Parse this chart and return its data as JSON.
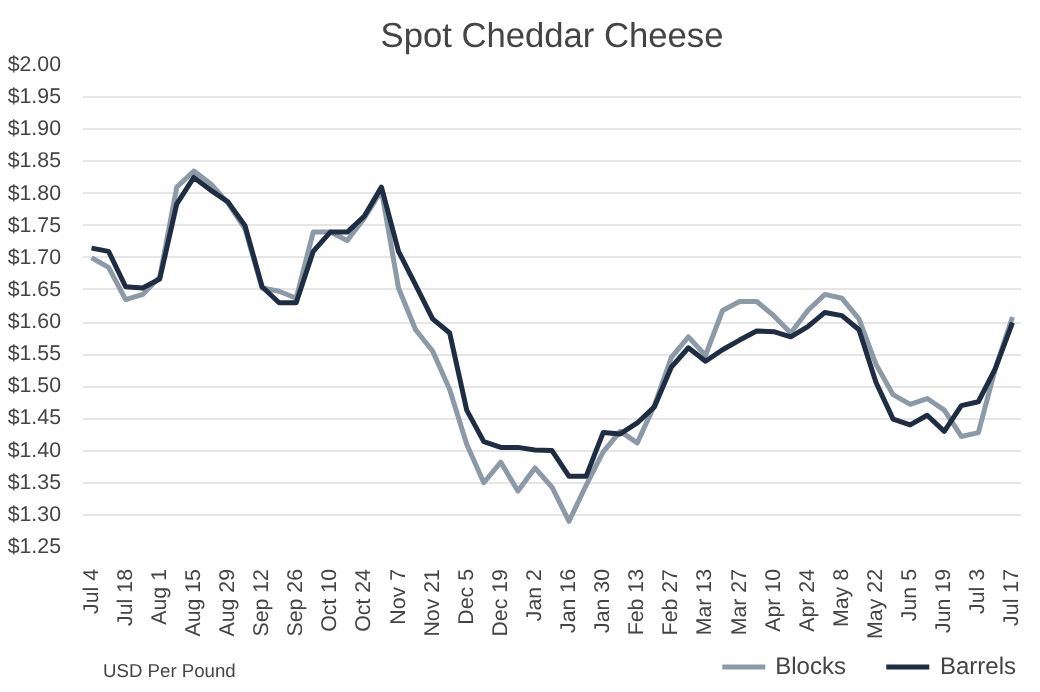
{
  "chart_data": {
    "type": "line",
    "title": "Spot Cheddar Cheese",
    "annotations": [
      "USD Per Pound"
    ],
    "categories": [
      "Jul 4",
      null,
      "Jul 18",
      null,
      "Aug 1",
      null,
      "Aug 15",
      null,
      "Aug 29",
      null,
      "Sep 12",
      null,
      "Sep 26",
      null,
      "Oct 10",
      null,
      "Oct 24",
      null,
      "Nov 7",
      null,
      "Nov 21",
      null,
      "Dec 5",
      null,
      "Dec 19",
      null,
      "Jan 2",
      null,
      "Jan 16",
      null,
      "Jan 30",
      null,
      "Feb 13",
      null,
      "Feb 27",
      null,
      "Mar 13",
      null,
      "Mar 27",
      null,
      "Apr 10",
      null,
      "Apr 24",
      null,
      "May 8",
      null,
      "May 22",
      null,
      "Jun 5",
      null,
      "Jun 19",
      null,
      "Jul 3",
      null,
      "Jul 17"
    ],
    "series": [
      {
        "name": "Blocks",
        "color": "#8c99a6",
        "values": [
          1.7,
          1.685,
          1.635,
          1.643,
          1.67,
          1.81,
          1.835,
          1.815,
          1.785,
          1.745,
          1.653,
          1.648,
          1.637,
          1.74,
          1.74,
          1.727,
          1.762,
          1.805,
          1.653,
          1.588,
          1.555,
          1.495,
          1.41,
          1.35,
          1.382,
          1.337,
          1.373,
          1.343,
          1.29,
          1.346,
          1.398,
          1.43,
          1.412,
          1.47,
          1.545,
          1.577,
          1.548,
          1.618,
          1.632,
          1.632,
          1.61,
          1.583,
          1.618,
          1.643,
          1.637,
          1.605,
          1.534,
          1.487,
          1.472,
          1.481,
          1.463,
          1.422,
          1.428,
          1.528,
          1.608
        ]
      },
      {
        "name": "Barrels",
        "color": "#1f2d42",
        "values": [
          1.715,
          1.71,
          1.655,
          1.653,
          1.667,
          1.784,
          1.825,
          1.805,
          1.787,
          1.75,
          1.655,
          1.63,
          1.63,
          1.71,
          1.74,
          1.74,
          1.765,
          1.81,
          1.71,
          1.658,
          1.605,
          1.583,
          1.463,
          1.414,
          1.405,
          1.405,
          1.401,
          1.4,
          1.36,
          1.36,
          1.428,
          1.426,
          1.443,
          1.468,
          1.53,
          1.56,
          1.539,
          1.557,
          1.572,
          1.586,
          1.585,
          1.577,
          1.593,
          1.615,
          1.61,
          1.588,
          1.506,
          1.449,
          1.44,
          1.455,
          1.43,
          1.47,
          1.476,
          1.528,
          1.599
        ]
      }
    ],
    "ylim": [
      1.25,
      2.0
    ],
    "yticks": [
      {
        "value": 1.25,
        "label": "$1.25"
      },
      {
        "value": 1.3,
        "label": "$1.30"
      },
      {
        "value": 1.35,
        "label": "$1.35"
      },
      {
        "value": 1.4,
        "label": "$1.40"
      },
      {
        "value": 1.45,
        "label": "$1.45"
      },
      {
        "value": 1.5,
        "label": "$1.50"
      },
      {
        "value": 1.55,
        "label": "$1.55"
      },
      {
        "value": 1.6,
        "label": "$1.60"
      },
      {
        "value": 1.65,
        "label": "$1.65"
      },
      {
        "value": 1.7,
        "label": "$1.70"
      },
      {
        "value": 1.75,
        "label": "$1.75"
      },
      {
        "value": 1.8,
        "label": "$1.80"
      },
      {
        "value": 1.85,
        "label": "$1.85"
      },
      {
        "value": 1.9,
        "label": "$1.90"
      },
      {
        "value": 1.95,
        "label": "$1.95"
      },
      {
        "value": 2.0,
        "label": "$2.00"
      }
    ],
    "grid": "y",
    "legend": "bottom right",
    "marker": "none",
    "line_style": "solid"
  }
}
